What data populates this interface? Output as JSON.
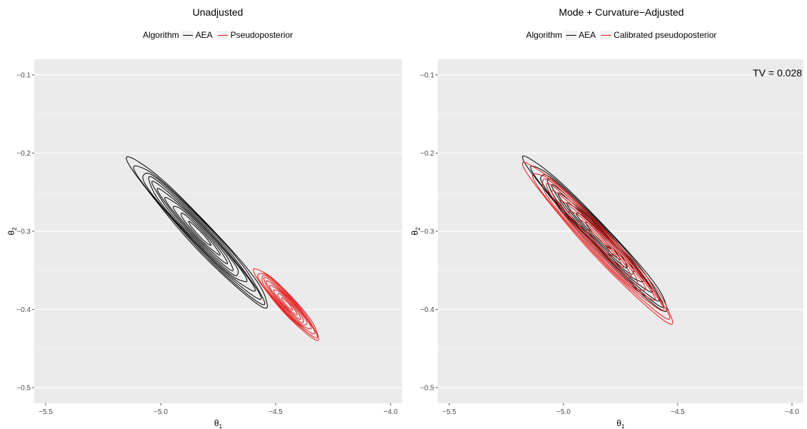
{
  "chart_data": [
    {
      "type": "contour",
      "title": "Unadjusted",
      "legend": {
        "title": "Algorithm",
        "placement": "top",
        "entries": [
          "AEA",
          "Pseudoposterior"
        ]
      },
      "xlabel": "θ",
      "xlabel_sub": "1",
      "ylabel": "θ",
      "ylabel_sub": "2",
      "xlim": [
        -5.55,
        -3.95
      ],
      "ylim": [
        -0.52,
        -0.08
      ],
      "x_ticks": [
        -5.5,
        -5.0,
        -4.5,
        -4.0
      ],
      "x_tick_labels": [
        "−5.5",
        "−5.0",
        "−4.5",
        "−4.0"
      ],
      "y_ticks": [
        -0.1,
        -0.2,
        -0.3,
        -0.4,
        -0.5
      ],
      "y_tick_labels": [
        "−0.1",
        "−0.2",
        "−0.3",
        "−0.4",
        "−0.5"
      ],
      "grid": true,
      "annotation": "",
      "series": [
        {
          "name": "AEA",
          "color": "#000000",
          "center": [
            -4.83,
            -0.303
          ],
          "u_half": 0.32,
          "w_half": 0.0218,
          "levels": 10
        },
        {
          "name": "Pseudoposterior",
          "color": "#e41a1c",
          "center": [
            -4.45,
            -0.393
          ],
          "u_half": 0.147,
          "w_half": 0.0145,
          "levels": 9
        }
      ]
    },
    {
      "type": "contour",
      "title": "Mode + Curvature−Adjusted",
      "legend": {
        "title": "Algorithm",
        "placement": "top",
        "entries": [
          "AEA",
          "Calibrated pseudoposterior"
        ]
      },
      "xlabel": "θ",
      "xlabel_sub": "1",
      "ylabel": "θ",
      "ylabel_sub": "2",
      "xlim": [
        -5.55,
        -3.95
      ],
      "ylim": [
        -0.52,
        -0.08
      ],
      "x_ticks": [
        -5.5,
        -5.0,
        -4.5,
        -4.0
      ],
      "x_tick_labels": [
        "−5.5",
        "−5.0",
        "−4.5",
        "−4.0"
      ],
      "y_ticks": [
        -0.1,
        -0.2,
        -0.3,
        -0.4,
        -0.5
      ],
      "y_tick_labels": [
        "−0.1",
        "−0.2",
        "−0.3",
        "−0.4",
        "−0.5"
      ],
      "grid": true,
      "annotation": "TV = 0.028",
      "series": [
        {
          "name": "AEA",
          "color": "#000000",
          "center": [
            -4.85,
            -0.305
          ],
          "u_half": 0.33,
          "w_half": 0.0202,
          "levels": 9
        },
        {
          "name": "Calibrated pseudoposterior",
          "color": "#e41a1c",
          "center": [
            -4.84,
            -0.315
          ],
          "u_half": 0.34,
          "w_half": 0.0225,
          "levels": 9
        }
      ]
    }
  ]
}
